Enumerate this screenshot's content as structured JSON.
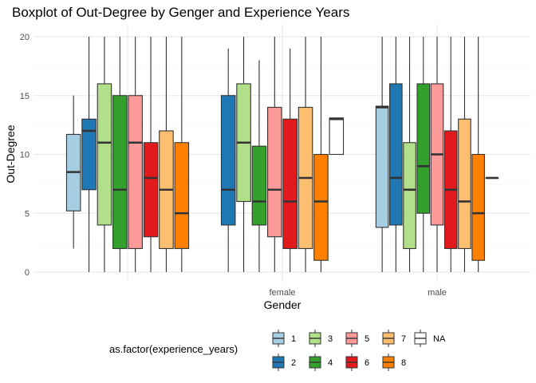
{
  "chart_data": {
    "type": "boxplot",
    "title": "Boxplot of Out-Degree by Genger and Experience Years",
    "xlabel": "Gender",
    "ylabel": "Out-Degree",
    "ylim": [
      0,
      20
    ],
    "y_ticks": [
      0,
      5,
      10,
      15,
      20
    ],
    "grid": true,
    "categories": [
      "",
      "female",
      "male"
    ],
    "legend": {
      "title": "as.factor(experience_years)",
      "position": "bottom",
      "entries": [
        {
          "label": "1",
          "color": "#a6cee3"
        },
        {
          "label": "2",
          "color": "#1f78b4"
        },
        {
          "label": "3",
          "color": "#b2df8a"
        },
        {
          "label": "4",
          "color": "#33a02c"
        },
        {
          "label": "5",
          "color": "#fb9a99"
        },
        {
          "label": "6",
          "color": "#e31a1c"
        },
        {
          "label": "7",
          "color": "#fdbf6f"
        },
        {
          "label": "8",
          "color": "#ff7f00"
        },
        {
          "label": "NA",
          "color": "#ffffff"
        }
      ]
    },
    "groups": [
      {
        "category": "",
        "boxes": [
          {
            "series": "1",
            "min": 2,
            "q1": 5.2,
            "median": 8.5,
            "q3": 11.7,
            "max": 15
          },
          {
            "series": "2",
            "min": 0,
            "q1": 7,
            "median": 12,
            "q3": 13,
            "max": 20
          },
          {
            "series": "3",
            "min": 0,
            "q1": 4,
            "median": 11,
            "q3": 16,
            "max": 20
          },
          {
            "series": "4",
            "min": 0,
            "q1": 2,
            "median": 7,
            "q3": 15,
            "max": 20
          },
          {
            "series": "5",
            "min": 0,
            "q1": 2,
            "median": 11,
            "q3": 15,
            "max": 20
          },
          {
            "series": "6",
            "min": 0,
            "q1": 3,
            "median": 8,
            "q3": 11,
            "max": 20
          },
          {
            "series": "7",
            "min": 0,
            "q1": 2,
            "median": 7,
            "q3": 12,
            "max": 20
          },
          {
            "series": "8",
            "min": 0,
            "q1": 2,
            "median": 5,
            "q3": 11,
            "max": 20
          }
        ]
      },
      {
        "category": "female",
        "boxes": [
          {
            "series": "2",
            "min": 0,
            "q1": 4,
            "median": 7,
            "q3": 15,
            "max": 19
          },
          {
            "series": "3",
            "min": 0,
            "q1": 6,
            "median": 11,
            "q3": 16,
            "max": 20
          },
          {
            "series": "4",
            "min": 0,
            "q1": 4,
            "median": 6,
            "q3": 10.7,
            "max": 18
          },
          {
            "series": "5",
            "min": 0,
            "q1": 3,
            "median": 7,
            "q3": 14,
            "max": 20
          },
          {
            "series": "6",
            "min": 0,
            "q1": 2,
            "median": 6,
            "q3": 13,
            "max": 19
          },
          {
            "series": "7",
            "min": 0,
            "q1": 2,
            "median": 8,
            "q3": 14,
            "max": 20
          },
          {
            "series": "8",
            "min": 0,
            "q1": 1,
            "median": 6,
            "q3": 10,
            "max": 20
          },
          {
            "series": "NA",
            "min": 10,
            "q1": 10,
            "median": 13,
            "q3": 13.1,
            "max": 13.1
          }
        ]
      },
      {
        "category": "male",
        "boxes": [
          {
            "series": "1",
            "min": 0,
            "q1": 3.8,
            "median": 14,
            "q3": 14.1,
            "max": 20
          },
          {
            "series": "2",
            "min": 0,
            "q1": 4,
            "median": 8,
            "q3": 16,
            "max": 20
          },
          {
            "series": "3",
            "min": 0,
            "q1": 2,
            "median": 7,
            "q3": 11,
            "max": 20
          },
          {
            "series": "4",
            "min": 0,
            "q1": 5,
            "median": 9,
            "q3": 16,
            "max": 20
          },
          {
            "series": "5",
            "min": 0,
            "q1": 4,
            "median": 10,
            "q3": 16,
            "max": 20
          },
          {
            "series": "6",
            "min": 0,
            "q1": 2,
            "median": 7,
            "q3": 12,
            "max": 20
          },
          {
            "series": "7",
            "min": 0,
            "q1": 2,
            "median": 6,
            "q3": 13,
            "max": 20
          },
          {
            "series": "8",
            "min": 0,
            "q1": 1,
            "median": 5,
            "q3": 10,
            "max": 20
          },
          {
            "series": "NA",
            "min": 8,
            "q1": 8,
            "median": 8,
            "q3": 8,
            "max": 8
          }
        ]
      }
    ]
  }
}
